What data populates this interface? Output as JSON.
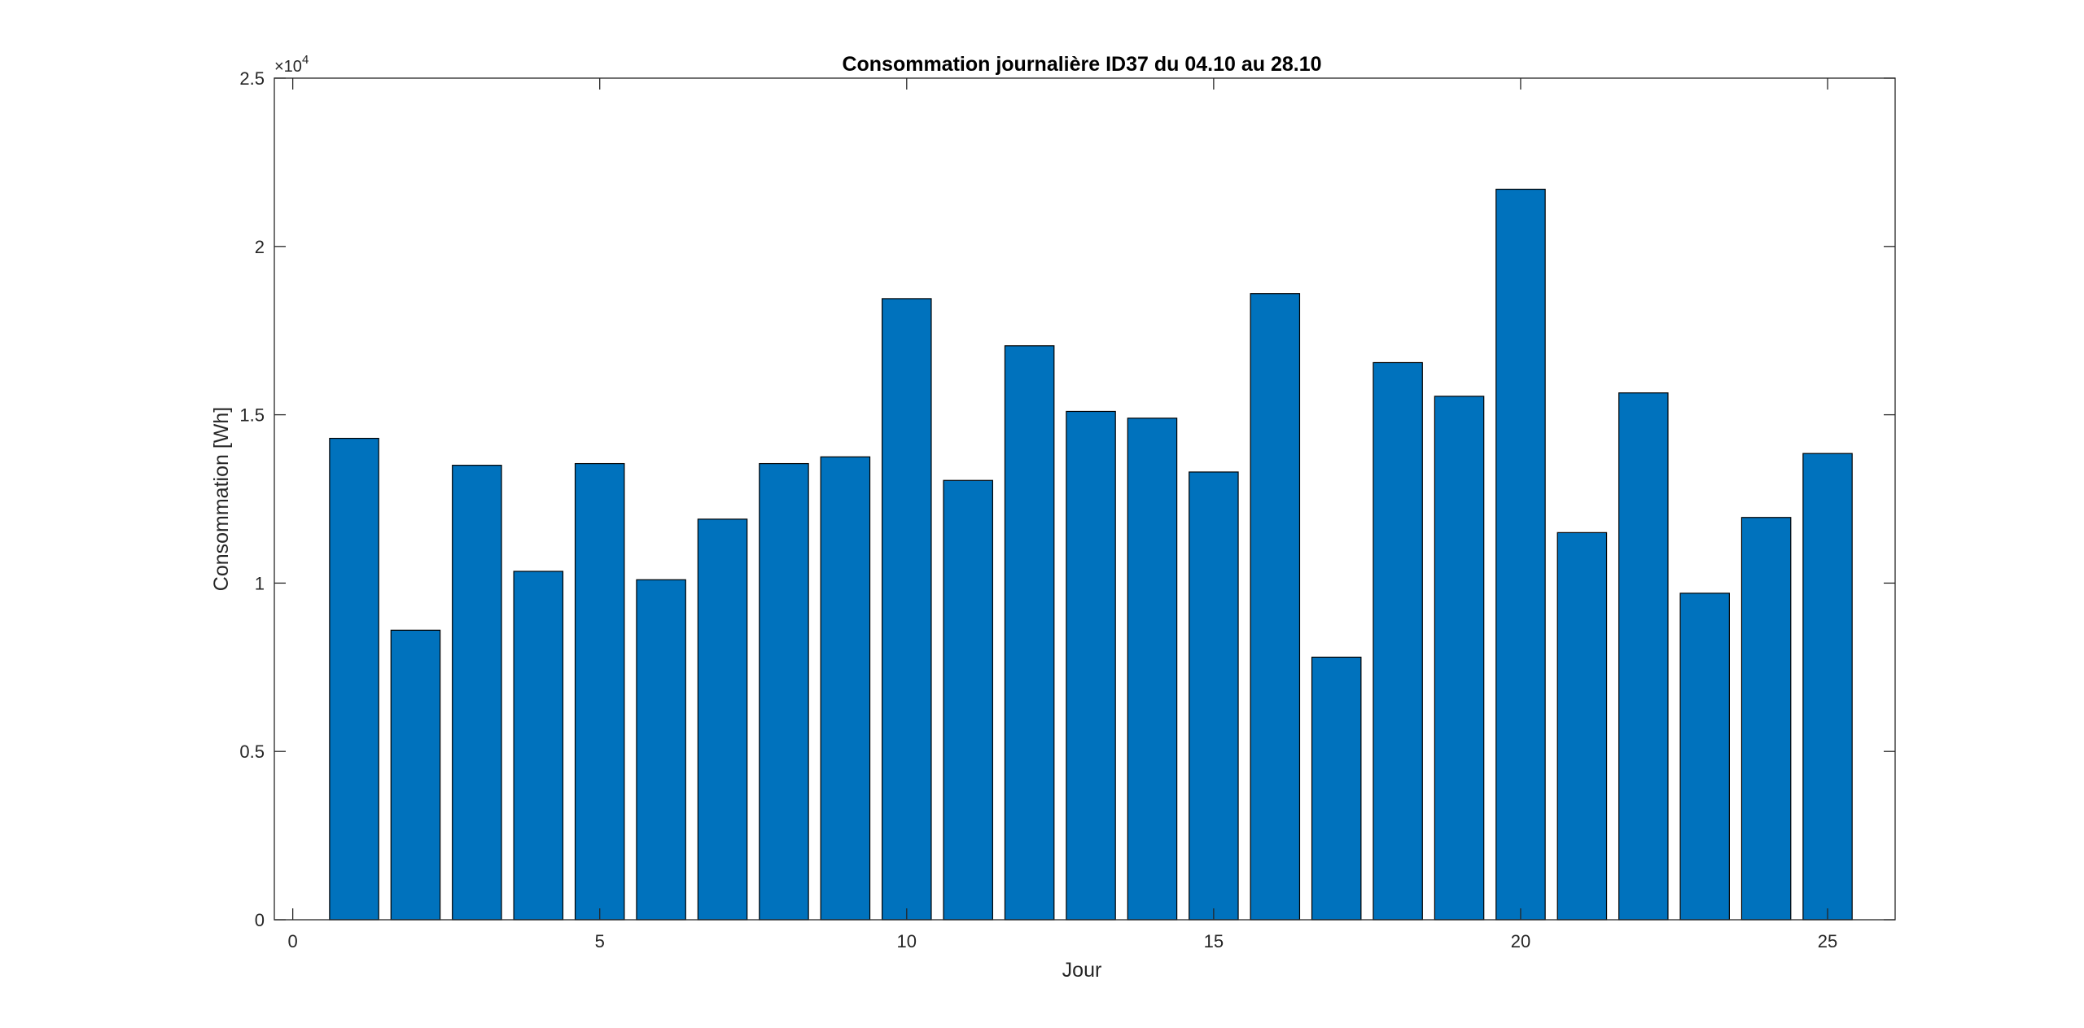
{
  "chart_data": {
    "type": "bar",
    "title": "Consommation journalière ID37 du 04.10 au 28.10",
    "xlabel": "Jour",
    "ylabel": "Consommation [Wh]",
    "y_exponent_label": "×10^4",
    "x": [
      1,
      2,
      3,
      4,
      5,
      6,
      7,
      8,
      9,
      10,
      11,
      12,
      13,
      14,
      15,
      16,
      17,
      18,
      19,
      20,
      21,
      22,
      23,
      24,
      25
    ],
    "values": [
      14300,
      8600,
      13500,
      10350,
      13550,
      10100,
      11900,
      13550,
      13750,
      18450,
      13050,
      17050,
      15100,
      14900,
      13300,
      18600,
      7800,
      16550,
      15550,
      21700,
      11500,
      15650,
      9700,
      11950,
      13850
    ],
    "xlim": [
      -0.3,
      26.1
    ],
    "ylim": [
      0,
      25000
    ],
    "xticks": [
      0,
      5,
      10,
      15,
      20,
      25
    ],
    "xtick_labels": [
      "0",
      "5",
      "10",
      "15",
      "20",
      "25"
    ],
    "yticks": [
      0,
      5000,
      10000,
      15000,
      20000,
      25000
    ],
    "ytick_labels": [
      "0",
      "0.5",
      "1",
      "1.5",
      "2",
      "2.5"
    ],
    "bar_color": "#0072BD",
    "bar_edge_color": "#000000",
    "grid": false,
    "box": true
  }
}
